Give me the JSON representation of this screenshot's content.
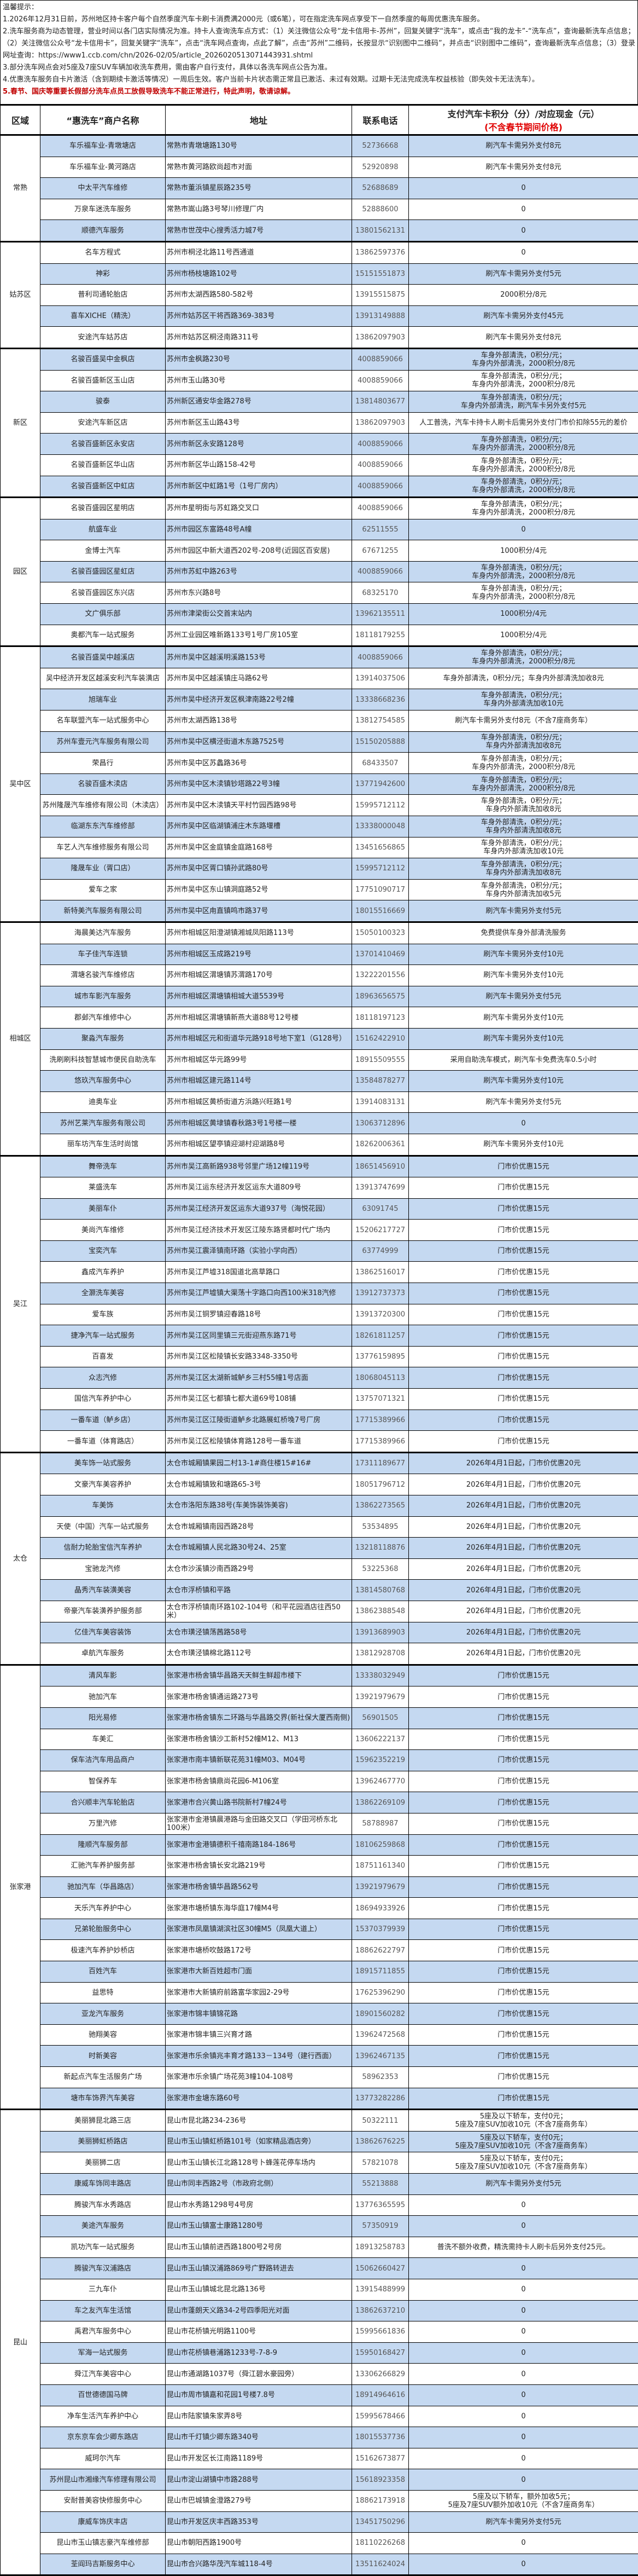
{
  "notes": {
    "title": "温馨提示：",
    "items": [
      "1.2026年12月31日前，苏州地区持卡客户每个自然季度汽车卡刷卡消费满2000元（或6笔），可在指定洗车网点享受下一自然季度的每周优惠洗车服务。",
      "2.洗车服务商为动态管理，营业时间以各门店实际情况为准。持卡人查询洗车点方式：（1）关注微信公众号“龙卡信用卡-苏州”，回复关键字“洗车”，或点击“我的龙卡”-“洗车点”，查询最新洗车点信息；（2）关注微信公众号“龙卡信用卡”，回复关键字“洗车”，点击“洗车网点查询，点此了解”，点击“苏州”二维码，长按显示“识别图中二维码”，并点击“识别图中二维码”，查询最新洗车点信息；（3）登录网址查询：https://www1.ccb.com/chn/2026-02/05/article_2026020513071443931.shtml",
      "3.部分洗车网点会对5座及7座SUV车辆加收洗车费用，需由客户自行支付，具体以各洗车网点公告为准。",
      "4.优惠洗车服务自卡片激活（含到期续卡激活等情况）一周后生效。客户当前卡片状态需正常且已激活、未过有效期。过期卡无法完成洗车权益核验（即失效卡无法洗车）。"
    ],
    "warning": "5.春节、国庆等重要长假部分洗车点员工放假导致洗车不能正常进行，特此声明，敬请谅解。"
  },
  "table": {
    "headers": {
      "region": "区域",
      "name": "“惠洗车”商户名称",
      "address": "地址",
      "phone": "联系电话",
      "price": "支付汽车卡积分（分）/对应现金（元）",
      "price_note": "(不含春节期间价格)"
    },
    "regions": [
      {
        "name": "常熟",
        "rows": [
          [
            "车乐福车业-青墩塘店",
            "常熟市青墩塘路130号",
            "52736668",
            "刷汽车卡需另外支付8元"
          ],
          [
            "车乐福车业-黄河路店",
            "常熟市黄河路欧尚超市对面",
            "52920898",
            "刷汽车卡需另外支付8元"
          ],
          [
            "中太平汽车维修",
            "常熟市董浜镇星辰路235号",
            "52688689",
            "0"
          ],
          [
            "万泉车迷洗车服务",
            "常熟市嵩山路3号琴川修理厂内",
            "52888600",
            "0"
          ],
          [
            "顺德汽车服务",
            "常熟市世茂中心搜秀活力城7号",
            "13801562131",
            "0"
          ]
        ]
      },
      {
        "name": "姑苏区",
        "rows": [
          [
            "名车方程式",
            "苏州市桐泾北路11号西通道",
            "13862597376",
            "0"
          ],
          [
            "神彩",
            "苏州市杨枝塘路102号",
            "15151551873",
            "刷汽车卡需另外支付5元"
          ],
          [
            "普利司通轮胎店",
            "苏州市太湖西路580-582号",
            "13915515875",
            "2000积分/8元"
          ],
          [
            "喜车XICHE（精洗）",
            "苏州市姑苏区干将西路369-383号",
            "13913149888",
            "刷汽车卡需另外支付45元"
          ],
          [
            "安途汽车姑苏店",
            "苏州市姑苏区桐泾南路311号",
            "13862097903",
            "刷汽车卡需另外支付8元"
          ]
        ]
      },
      {
        "name": "新区",
        "rows": [
          [
            "名骏百盛吴中金枫店",
            "苏州市金枫路230号",
            "4008859066",
            "车身外部清洗，0积分/元；\n车身内外部清洗，2000积分/8元"
          ],
          [
            "名骏百盛新区玉山店",
            "苏州市玉山路30号",
            "4008859066",
            "车身外部清洗，0积分/元；\n车身内外部清洗，2000积分/8元"
          ],
          [
            "骏泰",
            "苏州新区通安华金路278号",
            "13814803677",
            "车身外部清洗，0积分/元；\n车身内外部清洗，刷汽车卡另外支付5元"
          ],
          [
            "安途汽车新区店",
            "苏州市新区玉山路43号",
            "13862097903",
            "人工普洗，汽车卡持卡人刷卡后需另外支付门市价扣除55元的差价"
          ],
          [
            "名骏百盛新区永安店",
            "苏州市新区永安路128号",
            "4008859066",
            "车身外部清洗，0积分/元；\n车身内外部清洗，2000积分/8元"
          ],
          [
            "名骏百盛新区华山店",
            "苏州市新区华山路158-42号",
            "4008859066",
            "车身外部清洗，0积分/元；\n车身内外部清洗，2000积分/8元"
          ],
          [
            "名骏百盛新区中虹店",
            "苏州市新区中虹路1号（1号厂房内）",
            "4008859066",
            "车身外部清洗，0积分/元；\n车身内外部清洗，2000积分/8元"
          ]
        ]
      },
      {
        "name": "园区",
        "rows": [
          [
            "名骏百盛园区星明店",
            "苏州市星明街与苏虹路交叉口",
            "4008859066",
            "车身外部清洗，0积分/元；\n车身内外部清洗，2000积分/8元"
          ],
          [
            "航盛车业",
            "苏州市园区东富路48号A幢",
            "62511555",
            "0"
          ],
          [
            "金博士汽车",
            "苏州市园区中新大道西202号-208号(近园区百安居)",
            "67671255",
            "1000积分/4元"
          ],
          [
            "名骏百盛园区星虹店",
            "苏州市苏虹中路263号",
            "4008859066",
            "车身外部清洗，0积分/元；\n车身内外部清洗，2000积分/8元"
          ],
          [
            "名骏百盛园区东兴店",
            "苏州市东兴路8号",
            "68325170",
            "车身外部清洗，0积分/元；\n车身内外部清洗，2000积分/8元"
          ],
          [
            "文广俱乐部",
            "苏州市津梁街公交首末站内",
            "13962135511",
            "1000积分/4元"
          ],
          [
            "奥都汽车一站式服务",
            "苏州工业园区唯新路133号1号厂房105室",
            "18118179255",
            "1000积分/4元"
          ]
        ]
      },
      {
        "name": "吴中区",
        "rows": [
          [
            "名骏百盛吴中越溪店",
            "苏州市吴中区越溪明溪路153号",
            "4008859066",
            "车身外部清洗，0积分/元；\n车身内外部清洗，2000积分/8元"
          ],
          [
            "吴中经济开发区越溪安利汽车装潢店",
            "苏州市吴中区越溪镇庄马路62号",
            "13914037506",
            "车身外部清洗，0积分/元；车身内外部清洗加收8元"
          ],
          [
            "旭瑞车业",
            "苏州市吴中经济开发区枫津南路22号2幢",
            "13338668236",
            "车身外部清洗，0积分/元；\n车身内外部清洗加收10元"
          ],
          [
            "名车联盟汽车一站式服务中心",
            "苏州市太湖西路138号",
            "13812754585",
            "刷汽车卡需另外支付8元（不含7座商务车）"
          ],
          [
            "苏州车壹元汽车服务有限公司",
            "苏州市吴中区横泾街道木东路7525号",
            "15150205888",
            "车身外部清洗，0积分/元；\n车身内外部清洗加收8元"
          ],
          [
            "荣昌行",
            "苏州市吴中区苏蠡路36号",
            "68433507",
            "车身外部清洗，0积分/元；\n车身内外部清洗，2000积分/8元"
          ],
          [
            "名骏百盛木渎店",
            "苏州市吴中区木渎镇钞塔路22号3幢",
            "13771942600",
            "车身外部清洗，0积分/元；\n车身内外部清洗，2000积分/8元"
          ],
          [
            "苏州隆晟汽车维修有限公司（木渎店）",
            "苏州市吴中区木渎镇天平村竹园西路98号",
            "15995712112",
            "车身外部清洗，0积分/元；\n车身内外部清洗加收8元"
          ],
          [
            "临湖东东汽车维修部",
            "苏州市吴中区临湖镇浦庄木东路堰槽",
            "13338000048",
            "车身外部清洗，0积分/元；\n车身内外部清洗加收8元"
          ],
          [
            "车艺人汽车维修服务有限公司",
            "苏州市吴中区金庭镇金庭路168号",
            "13451656865",
            "车身外部清洗，0积分/元；\n车身内外部清洗加收10元"
          ],
          [
            "隆晟车业（胥口店）",
            "苏州市吴中区胥口镇孙武路80号",
            "15995712112",
            "车身外部清洗，0积分/元；\n车身内外部清洗加收8元"
          ],
          [
            "爱车之家",
            "苏州市吴中区东山镇洞庭路52号",
            "17751090717",
            "车身外部清洗，0积分/元；\n车身内外部清洗加收5元"
          ],
          [
            "新特美汽车服务有限公司",
            "苏州市吴中区甪直镇鸣市路37号",
            "18015516669",
            "刷汽车卡需另外支付5元"
          ]
        ]
      },
      {
        "name": "相城区",
        "rows": [
          [
            "海晨美达汽车服务",
            "苏州市相城区阳澄湖镇湘城凤阳路113号",
            "15050100323",
            "免费提供车身外部清洗服务"
          ],
          [
            "车子佳汽车连锁",
            "苏州市相城区玉成路219号",
            "13701410469",
            "刷汽车卡需另外支付10元"
          ],
          [
            "渭塘名骏汽车维修店",
            "苏州市相城区渭塘镇苏渭路170号",
            "13222201556",
            "刷汽车卡需另外支付10元"
          ],
          [
            "城市车影汽车服务",
            "苏州市相城区渭塘镇相城大道5539号",
            "18963656575",
            "刷汽车卡需另外支付5元"
          ],
          [
            "郡邺汽车维修中心",
            "苏州市相城区渭塘镇新燕大道88号12号楼",
            "18118197123",
            "刷汽车卡需另外支付10元"
          ],
          [
            "聚淼汽车服务",
            "苏州市相城区元和街道华元路918号地下室1（G128号）",
            "15162422910",
            "刷汽车卡需另外支付10元"
          ],
          [
            "洗刷刷科技智慧城市便民自助洗车",
            "苏州市相城区华元路99号",
            "18915509555",
            "采用自助洗车模式，刷汽车卡免费洗车0.5小时"
          ],
          [
            "悠玖汽车服务中心",
            "苏州市相城区建元路114号",
            "13584878277",
            "刷汽车卡需另外支付10元"
          ],
          [
            "迪奥车业",
            "苏州市相城区黄桥街道方浜路兴旺路1号",
            "13914083131",
            "刷汽车卡需另外支付5元"
          ],
          [
            "苏州艺莱汽车服务有限公司",
            "苏州市相城区黄埭镇春秋路3号1号楼一楼",
            "13063712896",
            "0"
          ],
          [
            "丽车坊汽车生活时尚馆",
            "苏州市相城区望亭镇迎湖村迎湖路8号",
            "18262006361",
            "刷汽车卡需另外支付10元"
          ]
        ]
      },
      {
        "name": "吴江",
        "rows": [
          [
            "舞帝洗车",
            "苏州市吴江高新路938号邻里广场12幢119号",
            "18651456910",
            "门市价优惠15元"
          ],
          [
            "莱盛洗车",
            "苏州市吴江运东经济开发区运东大道809号",
            "13913747699",
            "门市价优惠15元"
          ],
          [
            "美丽车仆",
            "苏州市吴江经济开发区运东大道937号（海悦花园）",
            "63091745",
            "门市价优惠15元"
          ],
          [
            "美尚汽车维修",
            "苏州市吴江经济技术开发区江陵东路贤都时代广场内",
            "15206217727",
            "门市价优惠15元"
          ],
          [
            "宝奕汽车",
            "苏州市吴江震泽镇南环路（实验小学向西）",
            "63774999",
            "门市价优惠15元"
          ],
          [
            "鑫成汽车养护",
            "苏州市吴江芦墟318国道北高草路口",
            "13862516017",
            "门市价优惠15元"
          ],
          [
            "全灏洗车美容",
            "苏州市吴江芦墟镇大渠荡十字路口向西100米318汽修",
            "13912737373",
            "门市价优惠15元"
          ],
          [
            "爱车族",
            "苏州市吴江铜罗镇迎春路18号",
            "13913720300",
            "门市价优惠15元"
          ],
          [
            "捷净汽车一站式服务",
            "苏州市吴江区同里镇三元街迎燕东路71号",
            "18261811257",
            "门市价优惠15元"
          ],
          [
            "百喜发",
            "苏州市吴江区松陵镇长安路3348-3350号",
            "13776159895",
            "门市价优惠15元"
          ],
          [
            "众志汽修",
            "苏州市吴江区太湖新城鲈乡三村55幢1号店面",
            "18068045113",
            "门市价优惠15元"
          ],
          [
            "国信汽车养护中心",
            "苏州市吴江区七都镇七都大道69号108铺",
            "13757071321",
            "门市价优惠15元"
          ],
          [
            "一番车道（鲈乡店）",
            "苏州市吴江区江陵街道鲈乡北路展虹桥堍7号厂房",
            "17715389966",
            "门市价优惠15元"
          ],
          [
            "一番车道（体育路店）",
            "苏州市吴江区松陵镇体育路128号一番车道",
            "17715389966",
            "门市价优惠15元"
          ]
        ]
      },
      {
        "name": "太仓",
        "rows": [
          [
            "美车饰一站式服务",
            "太仓市城厢镇果园二村13-1#商住楼15#16#",
            "17311189677",
            "2026年4月1日起，门市价优惠20元"
          ],
          [
            "文豪汽车美容养护",
            "太仓市城厢镇致和塘路65-3号",
            "18051796712",
            "2026年4月1日起，门市价优惠20元"
          ],
          [
            "车美饰",
            "太仓市洛阳东路38号(车美饰装饰美容)",
            "13862273565",
            "2026年4月1日起，门市价优惠20元"
          ],
          [
            "天使（中国）汽车一站式服务",
            "太仓市城厢镇南园西路28号",
            "53534895",
            "2026年4月1日起，门市价优惠20元"
          ],
          [
            "信耐力轮胎宝信汽车养护",
            "太仓市城厢镇人民北路30号24、25室",
            "13218118876",
            "2026年4月1日起，门市价优惠20元"
          ],
          [
            "宝驰龙汽修",
            "太仓市沙溪镇沙南西路29号",
            "53225368",
            "2026年4月1日起，门市价优惠20元"
          ],
          [
            "晶秀汽车装潢美容",
            "太仓市浮桥镇和平路",
            "13814580768",
            "2026年4月1日起，门市价优惠20元"
          ],
          [
            "帝豪汽车装潢养护服务部",
            "太仓市浮桥镇南环路102-104号（和平花园酒店往西50米）",
            "13862388548",
            "2026年4月1日起，门市价优惠20元"
          ],
          [
            "亿佳汽车美容装饰",
            "太仓市璜泾镇荡茜路58号",
            "13913689903",
            "2026年4月1日起，门市价优惠20元"
          ],
          [
            "卓航汽车服务",
            "太仓市璜泾镇棉北路112号",
            "13812928708",
            "2026年4月1日起，门市价优惠20元"
          ]
        ]
      },
      {
        "name": "张家港",
        "rows": [
          [
            "清风车影",
            "张家港市杨舍镇华昌路天天鲜生鲜超市楼下",
            "13338032949",
            "门市价优惠15元"
          ],
          [
            "驰加汽车",
            "张家港市杨舍镇通运路273号",
            "13921979679",
            "门市价优惠15元"
          ],
          [
            "阳光易修",
            "张家港市杨舍镇东二环路与华昌路交界(新社保大厦西南侧)",
            "56901505",
            "门市价优惠15元"
          ],
          [
            "车美汇",
            "张家港市杨舍镇沙工新村52幢M12、M13",
            "13606222137",
            "门市价优惠15元"
          ],
          [
            "保车洁汽车用品商户",
            "张家港市南丰镇新联花苑31幢M03、M04号",
            "15962352219",
            "门市价优惠15元"
          ],
          [
            "智保养车",
            "张家港市杨舍镇鼎尚花园6-M106室",
            "13962467770",
            "门市价优惠15元"
          ],
          [
            "合兴顺丰汽车轮胎店",
            "张家港市合兴黄山路书院新村7幢24号",
            "13862269109",
            "门市价优惠15元"
          ],
          [
            "万里汽修",
            "张家港市金港镇晨港路与金田路交叉口（学田河桥东北100米）",
            "58788987",
            "门市价优惠15元"
          ],
          [
            "隆顺汽车服务部",
            "张家港市金港镇德积千禧南路184-186号",
            "18106259868",
            "门市价优惠15元"
          ],
          [
            "汇驰汽车养护服务部",
            "张家港市杨舍镇长安北路219号",
            "18751161340",
            "门市价优惠15元"
          ],
          [
            "驰加汽车（华昌路店）",
            "张家港市杨舍镇华昌路562号",
            "13921979679",
            "门市价优惠15元"
          ],
          [
            "天乐汽车养护中心",
            "张家港市塘桥镇东海华庭17幢M4号",
            "18694933926",
            "门市价优惠15元"
          ],
          [
            "兄弟轮胎服务中心",
            "张家港市凤凰镇湖滨社区30幢M5（凤凰大道上）",
            "15370379939",
            "门市价优惠15元"
          ],
          [
            "极速汽车养护妙桥店",
            "张家港市塘桥吹鼓路172号",
            "18862622797",
            "门市价优惠15元"
          ],
          [
            "百姓汽车",
            "张家港市大新百姓超市门面",
            "18915711855",
            "门市价优惠15元"
          ],
          [
            "益思特",
            "张家港市大新镇府前路富华家园2-29号",
            "17625396290",
            "门市价优惠15元"
          ],
          [
            "亚龙汽车服务",
            "张家港市锦丰镇锦花路",
            "18901560282",
            "门市价优惠15元"
          ],
          [
            "驰翔美容",
            "张家港市锦丰镇三兴育才路",
            "13962472568",
            "门市价优惠15元"
          ],
          [
            "时新美容",
            "张家港市乐余镇兆丰育才路133－134号（建行西面）",
            "13962467135",
            "门市价优惠15元"
          ],
          [
            "新起点汽车生活服务广场",
            "张家港市乐余镇广场花苑3幢104-108号",
            "58962353",
            "门市价优惠15元"
          ],
          [
            "塘市车饰界汽车美容",
            "张家港市金塘东路60号",
            "13773282286",
            "门市价优惠15元"
          ]
        ]
      },
      {
        "name": "昆山",
        "rows": [
          [
            "美丽狮昆北路三店",
            "昆山市昆北路234-236号",
            "50322111",
            "5座及以下轿车，支付0元；\n5座及7座SUV加收10元（不含7座商务车）"
          ],
          [
            "美丽狮虹桥路店",
            "昆山市玉山镇虹桥路101号（如家精品酒店旁）",
            "13862676225",
            "5座及以下轿车，支付0元；\n5座及7座SUV加收10元（不含7座商务车）"
          ],
          [
            "美丽狮二店",
            "昆山市玉山镇长江北路128号卜蜂莲花停车场内",
            "57821078",
            "5座及以下轿车，支付0元；\n5座及7座SUV加收10元（不含7座商务车）"
          ],
          [
            "康威车饰同丰路店",
            "昆山市同丰西路2号（市政府北侧）",
            "55213888",
            "刷汽车卡需另外支付5元"
          ],
          [
            "腾骏汽车水秀路店",
            "昆山市水秀路1298号4号房",
            "13776365595",
            "0"
          ],
          [
            "美途汽车服务",
            "昆山市玉山镇富士康路1280号",
            "57350919",
            "0"
          ],
          [
            "凯功汽车一站式服务",
            "昆山市玉山镇前进西路1800号2号房",
            "18913258783",
            "普洗不额外收费，精洗需持卡人刷卡后另外支付25元。"
          ],
          [
            "腾骏汽车汉浦路店",
            "昆山市玉山镇汉浦路869号广野路转进去",
            "15062660427",
            "0"
          ],
          [
            "三九车仆",
            "昆山市玉山镇城北昆北路136号",
            "13915488999",
            "0"
          ],
          [
            "车之友汽车生活馆",
            "昆山市蓬朗天义路34-2号四季阳光对面",
            "13862637210",
            "0"
          ],
          [
            "禹君汽车服务中心",
            "昆山市花桥镇光明路1100号",
            "15995661836",
            "0"
          ],
          [
            "军海一站式服务",
            "昆山市花桥镇巷浦路1233号-7-8-9",
            "15950168427",
            "0"
          ],
          [
            "舜江汽车美容中心",
            "昆山市通湖路1037号（舜江碧水豪园旁）",
            "13306266829",
            "0"
          ],
          [
            "百世德德国马牌",
            "昆山市周市镇嘉和花园1号楼7.8号",
            "18914964616",
            "0"
          ],
          [
            "净车生活汽车养护中心",
            "昆山市陆家镇朱家弄8号",
            "15995678466",
            "0"
          ],
          [
            "京东京车会少卿东路店",
            "昆山市千灯镇少卿东路340号",
            "18015537736",
            "0"
          ],
          [
            "威珂尔汽车",
            "昆山市开发区长江南路1189号",
            "15162673877",
            "0"
          ],
          [
            "苏州昆山市湘缘汽车修理有限公司",
            "昆山市淀山湖镇中市路288号",
            "15618923358",
            "0"
          ],
          [
            "安耐普美容快修服务中心",
            "昆山市巴城镇金澄路279号",
            "18862173918",
            "5座及以下轿车，额外加收5元；\n5座及7座SUV额外加收10元（不含7座商务车）"
          ],
          [
            "康威车饰庆丰店",
            "昆山市开发区庆丰西路353号",
            "13451750296",
            "刷汽车卡需另外支付5元"
          ],
          [
            "昆山市玉山镇志豪汽车维修部",
            "昆山市朝阳西路1900号",
            "18110226268",
            "0"
          ],
          [
            "荃阎玛吉斯服务中心",
            "昆山市合兴路华茂汽车城118-4号",
            "13511624024",
            "0"
          ]
        ]
      }
    ]
  },
  "colors": {
    "row_alt": "#c5d9f1",
    "warning": "#c00000",
    "header_note": "#e00000"
  }
}
